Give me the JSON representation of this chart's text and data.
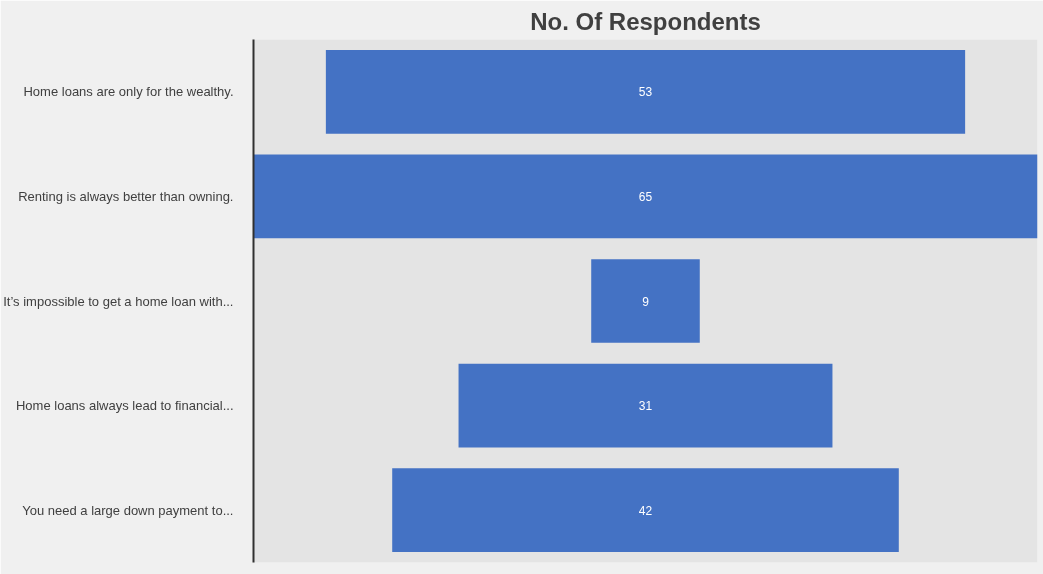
{
  "chart_data": {
    "type": "other",
    "title": "No. Of Respondents",
    "categories": [
      "Home loans are only for the wealthy.",
      "Renting is always better than owning.",
      "It’s impossible to get a home loan with...",
      "Home loans always lead to financial...",
      "You need a large down payment to..."
    ],
    "values": [
      53,
      65,
      9,
      31,
      42
    ],
    "color": "#4472c4",
    "data_labels": true
  }
}
